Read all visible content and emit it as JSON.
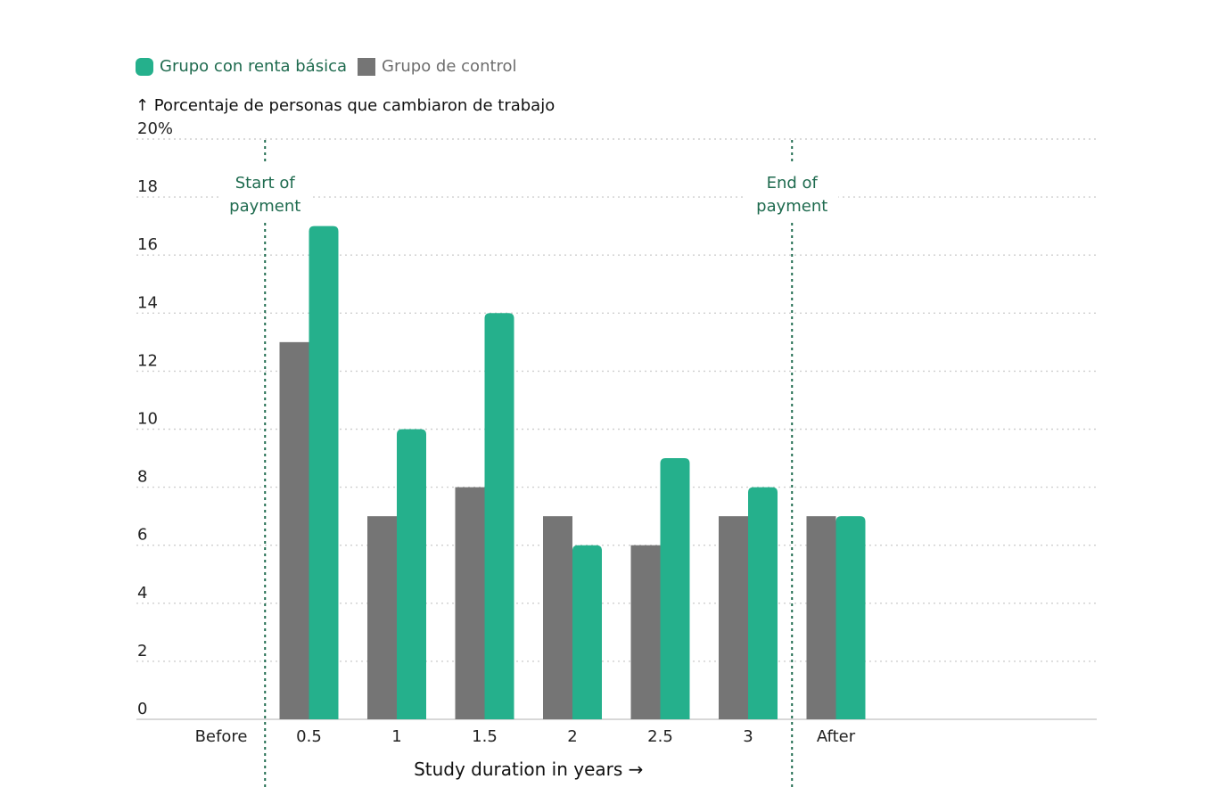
{
  "chart_data": {
    "type": "bar",
    "title": "",
    "ylabel": "↑ Porcentaje de personas que cambiaron de trabajo",
    "xlabel": "Study duration in years →",
    "categories": [
      "Before",
      "0.5",
      "1",
      "1.5",
      "2",
      "2.5",
      "3",
      "After"
    ],
    "series": [
      {
        "name": "Grupo de control",
        "color": "#757575",
        "values": [
          null,
          13,
          7,
          8,
          7,
          6,
          7,
          7
        ]
      },
      {
        "name": "Grupo con renta básica",
        "color": "#25b08c",
        "values": [
          null,
          17,
          10,
          14,
          6,
          9,
          8,
          7
        ]
      }
    ],
    "ylim": [
      0,
      20
    ],
    "yticks": [
      "0",
      "2",
      "4",
      "6",
      "8",
      "10",
      "12",
      "14",
      "16",
      "18",
      "20%"
    ],
    "grid": true,
    "legend_position": "top-left",
    "annotations": [
      {
        "text_lines": [
          "Start of",
          "payment"
        ],
        "between": [
          "Before",
          "0.5"
        ]
      },
      {
        "text_lines": [
          "End of",
          "payment"
        ],
        "between": [
          "3",
          "After"
        ]
      }
    ]
  }
}
